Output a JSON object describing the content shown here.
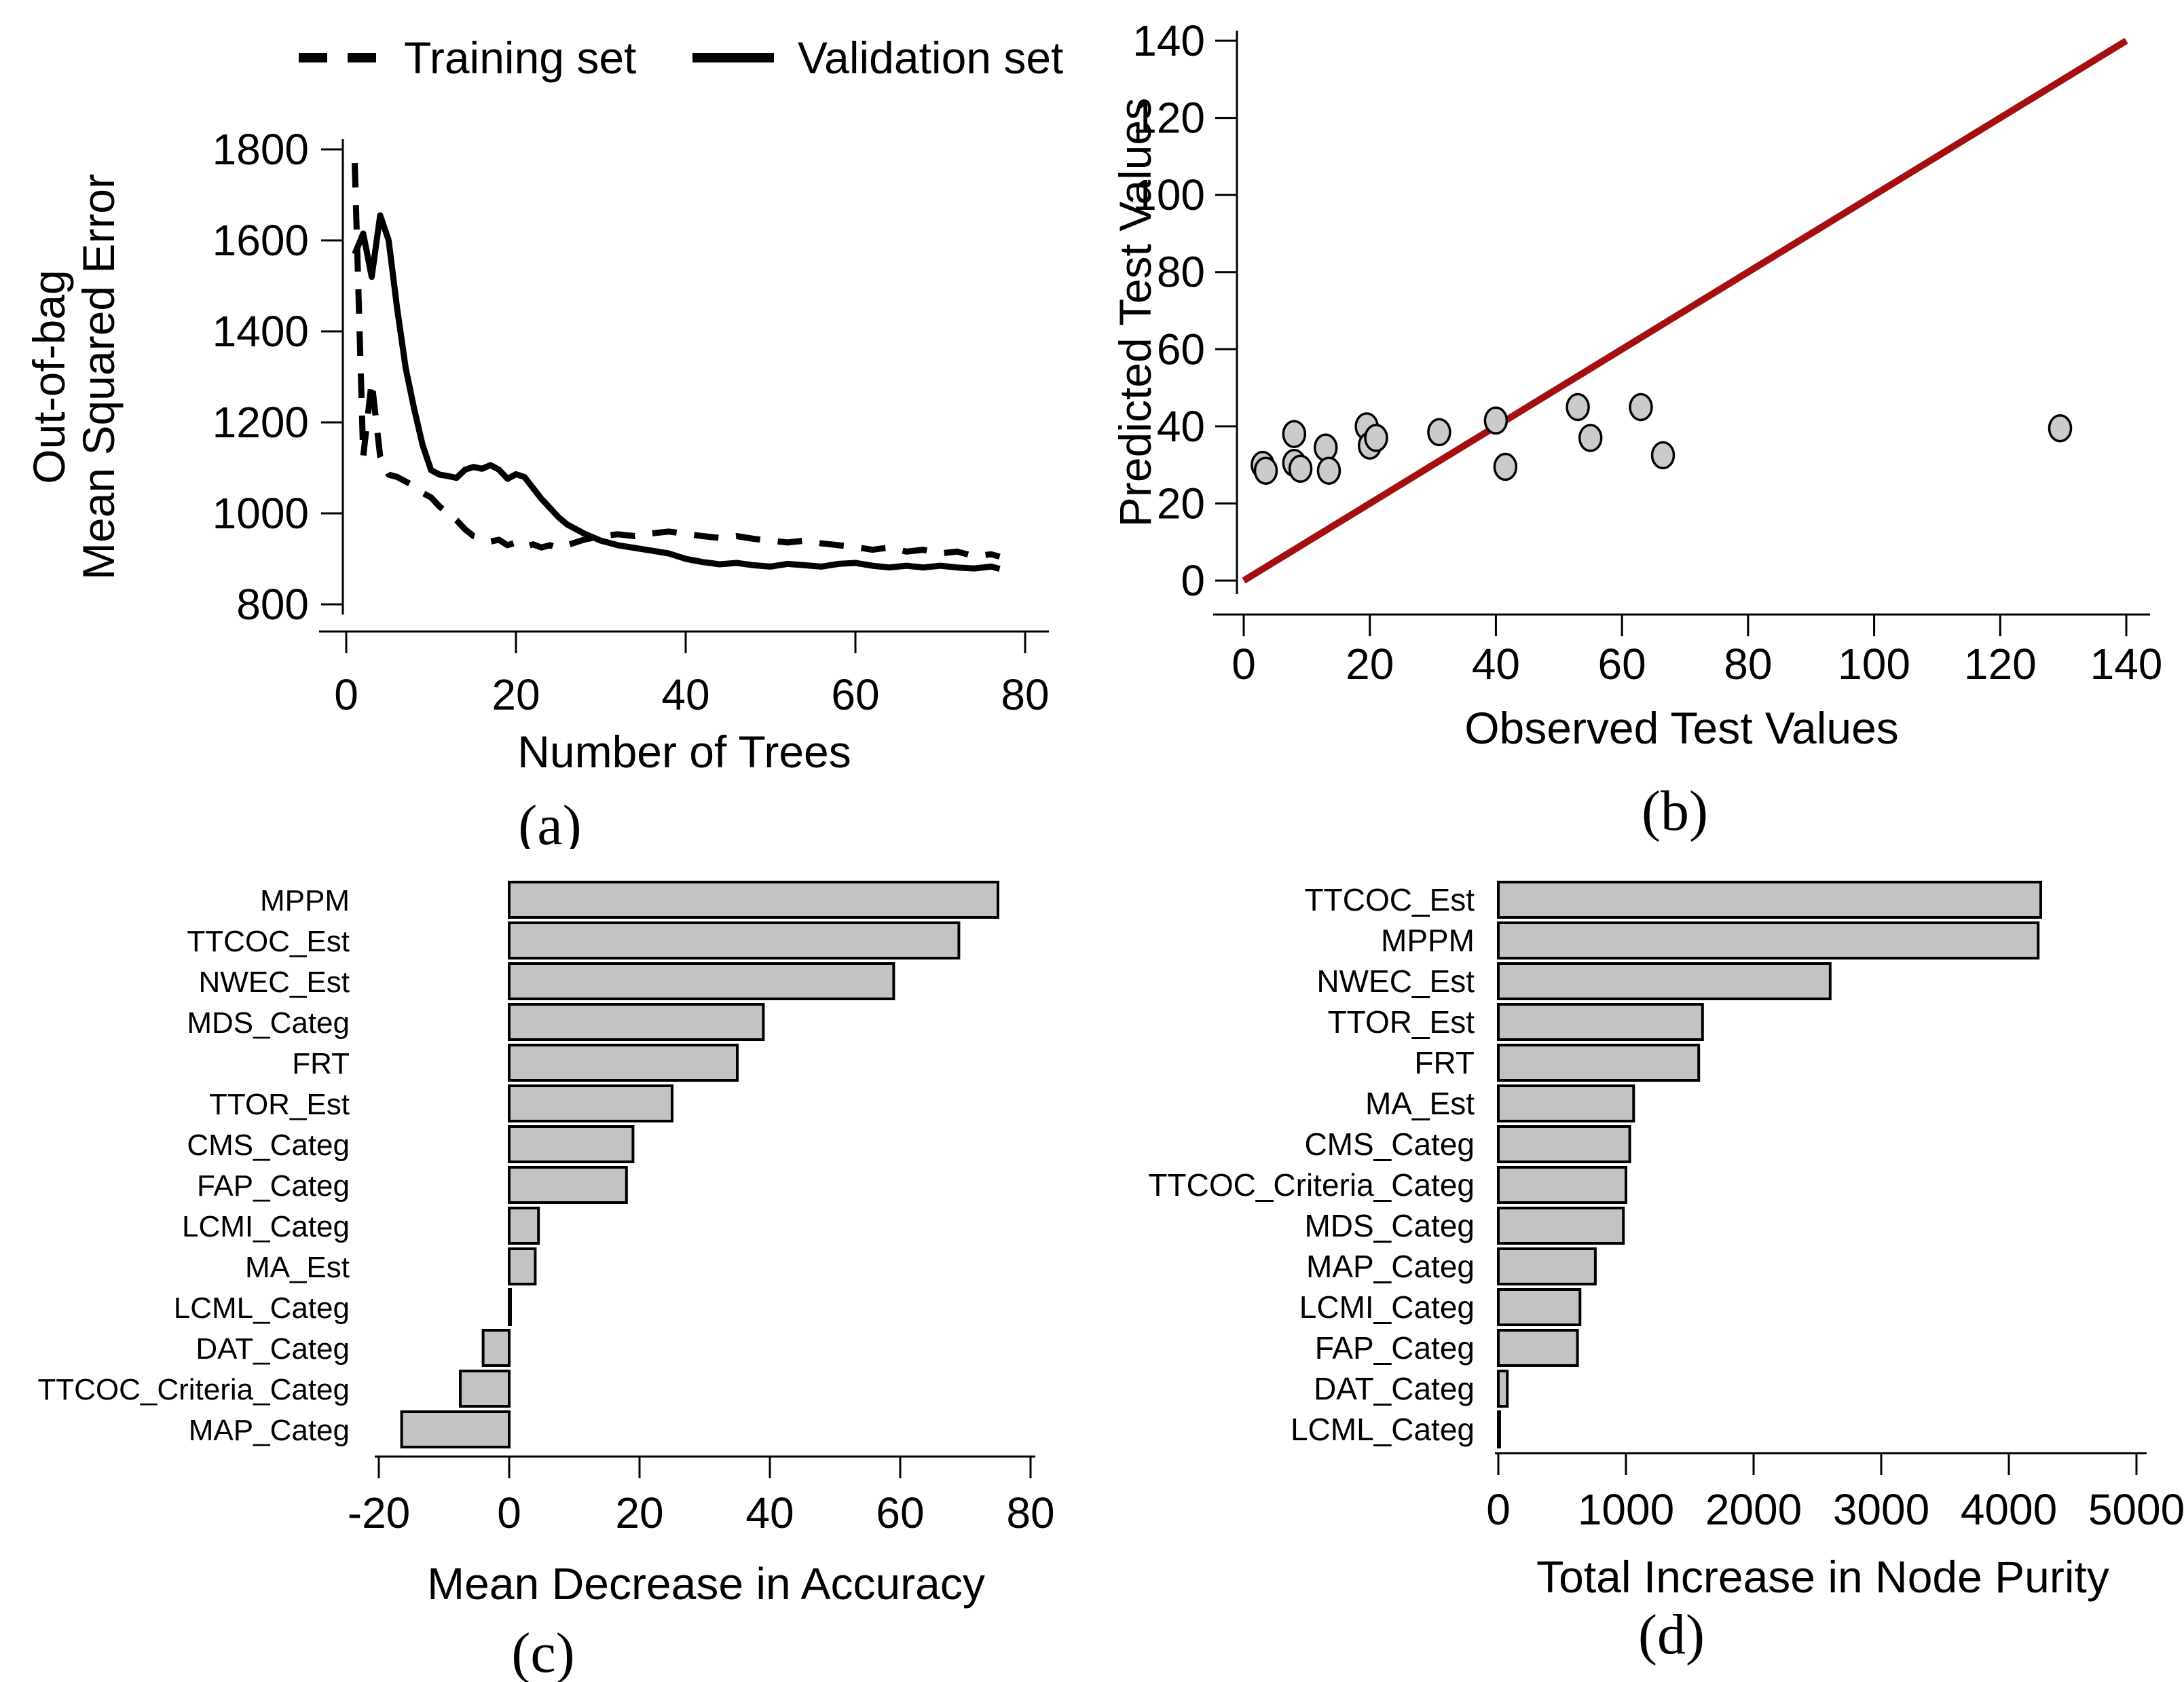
{
  "figure": {
    "background": "#ffffff"
  },
  "colors": {
    "axis": "#000000",
    "line_black": "#000000",
    "identity_line_red": "#a50f0f",
    "bar_fill": "#c3c3c3",
    "bar_stroke": "#000000",
    "point_fill": "#cbcbcb",
    "point_stroke": "#000000"
  },
  "chart_data": [
    {
      "id": "a",
      "type": "line",
      "caption": "(a)",
      "xlabel": "Number of Trees",
      "ylabel_line1": "Out-of-bag",
      "ylabel_line2": "Mean Squared Error",
      "xlim": [
        0,
        80
      ],
      "xticks": [
        0,
        20,
        40,
        60,
        80
      ],
      "ylim": [
        800,
        1800
      ],
      "yticks": [
        800,
        1000,
        1200,
        1400,
        1600,
        1800
      ],
      "grid": false,
      "legend_position": "top",
      "legend": [
        {
          "label": "Training set",
          "style": "dashed"
        },
        {
          "label": "Validation set",
          "style": "solid"
        }
      ],
      "series": [
        {
          "name": "Training set",
          "style": "dashed",
          "points": [
            [
              1,
              1770
            ],
            [
              2,
              1125
            ],
            [
              3,
              1290
            ],
            [
              4,
              1125
            ],
            [
              5,
              1085
            ],
            [
              6,
              1080
            ],
            [
              7,
              1070
            ],
            [
              8,
              1060
            ],
            [
              9,
              1045
            ],
            [
              10,
              1035
            ],
            [
              11,
              1015
            ],
            [
              12,
              1000
            ],
            [
              13,
              985
            ],
            [
              14,
              965
            ],
            [
              15,
              950
            ],
            [
              16,
              945
            ],
            [
              17,
              938
            ],
            [
              18,
              942
            ],
            [
              19,
              930
            ],
            [
              20,
              936
            ],
            [
              21,
              926
            ],
            [
              22,
              932
            ],
            [
              23,
              925
            ],
            [
              24,
              930
            ],
            [
              25,
              924
            ],
            [
              26,
              930
            ],
            [
              27,
              936
            ],
            [
              28,
              942
            ],
            [
              29,
              946
            ],
            [
              30,
              950
            ],
            [
              32,
              954
            ],
            [
              34,
              950
            ],
            [
              36,
              956
            ],
            [
              38,
              960
            ],
            [
              40,
              955
            ],
            [
              42,
              950
            ],
            [
              44,
              946
            ],
            [
              46,
              950
            ],
            [
              48,
              944
            ],
            [
              50,
              940
            ],
            [
              52,
              936
            ],
            [
              54,
              940
            ],
            [
              56,
              934
            ],
            [
              58,
              930
            ],
            [
              60,
              926
            ],
            [
              62,
              920
            ],
            [
              64,
              925
            ],
            [
              66,
              916
            ],
            [
              68,
              920
            ],
            [
              70,
              912
            ],
            [
              72,
              916
            ],
            [
              74,
              906
            ],
            [
              76,
              910
            ],
            [
              77,
              905
            ]
          ]
        },
        {
          "name": "Validation set",
          "style": "solid",
          "points": [
            [
              1,
              1570
            ],
            [
              2,
              1615
            ],
            [
              3,
              1520
            ],
            [
              4,
              1655
            ],
            [
              5,
              1600
            ],
            [
              6,
              1450
            ],
            [
              7,
              1320
            ],
            [
              8,
              1230
            ],
            [
              9,
              1150
            ],
            [
              10,
              1095
            ],
            [
              11,
              1085
            ],
            [
              12,
              1082
            ],
            [
              13,
              1078
            ],
            [
              14,
              1096
            ],
            [
              15,
              1102
            ],
            [
              16,
              1098
            ],
            [
              17,
              1106
            ],
            [
              18,
              1096
            ],
            [
              19,
              1076
            ],
            [
              20,
              1086
            ],
            [
              21,
              1080
            ],
            [
              22,
              1056
            ],
            [
              23,
              1032
            ],
            [
              24,
              1012
            ],
            [
              25,
              992
            ],
            [
              26,
              976
            ],
            [
              28,
              956
            ],
            [
              30,
              940
            ],
            [
              32,
              930
            ],
            [
              34,
              924
            ],
            [
              36,
              918
            ],
            [
              38,
              912
            ],
            [
              40,
              900
            ],
            [
              42,
              893
            ],
            [
              44,
              888
            ],
            [
              46,
              891
            ],
            [
              48,
              886
            ],
            [
              50,
              883
            ],
            [
              52,
              889
            ],
            [
              54,
              886
            ],
            [
              56,
              883
            ],
            [
              58,
              889
            ],
            [
              60,
              891
            ],
            [
              62,
              885
            ],
            [
              64,
              881
            ],
            [
              66,
              885
            ],
            [
              68,
              881
            ],
            [
              70,
              885
            ],
            [
              72,
              881
            ],
            [
              74,
              879
            ],
            [
              76,
              883
            ],
            [
              77,
              878
            ]
          ]
        }
      ]
    },
    {
      "id": "b",
      "type": "scatter",
      "caption": "(b)",
      "xlabel": "Observed Test Values",
      "ylabel": "Predicted Test Values",
      "xlim": [
        0,
        140
      ],
      "xticks": [
        0,
        20,
        40,
        60,
        80,
        100,
        120,
        140
      ],
      "ylim": [
        0,
        140
      ],
      "yticks": [
        0,
        20,
        40,
        60,
        80,
        100,
        120,
        140
      ],
      "grid": false,
      "identity_line": {
        "from": [
          0,
          0
        ],
        "to": [
          140,
          140
        ],
        "color": "#a50f0f"
      },
      "points": [
        [
          3,
          30
        ],
        [
          3.5,
          28.5
        ],
        [
          8,
          38
        ],
        [
          8,
          30.5
        ],
        [
          9,
          29
        ],
        [
          13,
          34.5
        ],
        [
          13.5,
          28.5
        ],
        [
          19.5,
          40
        ],
        [
          20,
          35
        ],
        [
          21,
          37
        ],
        [
          31,
          38.5
        ],
        [
          40,
          41.5
        ],
        [
          41.5,
          29.5
        ],
        [
          53,
          45
        ],
        [
          55,
          37
        ],
        [
          63,
          45
        ],
        [
          66.5,
          32.5
        ],
        [
          129.5,
          39.5
        ]
      ]
    },
    {
      "id": "c",
      "type": "bar",
      "orientation": "horizontal",
      "caption": "(c)",
      "xlabel": "Mean Decrease in Accuracy",
      "xlim": [
        -20,
        80
      ],
      "xticks": [
        -20,
        0,
        20,
        40,
        60,
        80
      ],
      "grid": false,
      "categories": [
        "MPPM",
        "TTCOC_Est",
        "NWEC_Est",
        "MDS_Categ",
        "FRT",
        "TTOR_Est",
        "CMS_Categ",
        "FAP_Categ",
        "LCMI_Categ",
        "MA_Est",
        "LCML_Categ",
        "DAT_Categ",
        "TTCOC_Criteria_Categ",
        "MAP_Categ"
      ],
      "values": [
        75,
        69,
        59,
        39,
        35,
        25,
        19,
        18,
        4.5,
        4,
        0,
        -4,
        -7.5,
        -16.5
      ]
    },
    {
      "id": "d",
      "type": "bar",
      "orientation": "horizontal",
      "caption": "(d)",
      "xlabel": "Total Increase in Node Purity",
      "xlim": [
        0,
        5000
      ],
      "xticks": [
        0,
        1000,
        2000,
        3000,
        4000,
        5000
      ],
      "grid": false,
      "categories": [
        "TTCOC_Est",
        "MPPM",
        "NWEC_Est",
        "TTOR_Est",
        "FRT",
        "MA_Est",
        "CMS_Categ",
        "TTCOC_Criteria_Categ",
        "MDS_Categ",
        "MAP_Categ",
        "LCMI_Categ",
        "FAP_Categ",
        "DAT_Categ",
        "LCML_Categ"
      ],
      "values": [
        4250,
        4230,
        2600,
        1600,
        1570,
        1060,
        1030,
        1000,
        980,
        760,
        640,
        620,
        70,
        0
      ]
    }
  ]
}
